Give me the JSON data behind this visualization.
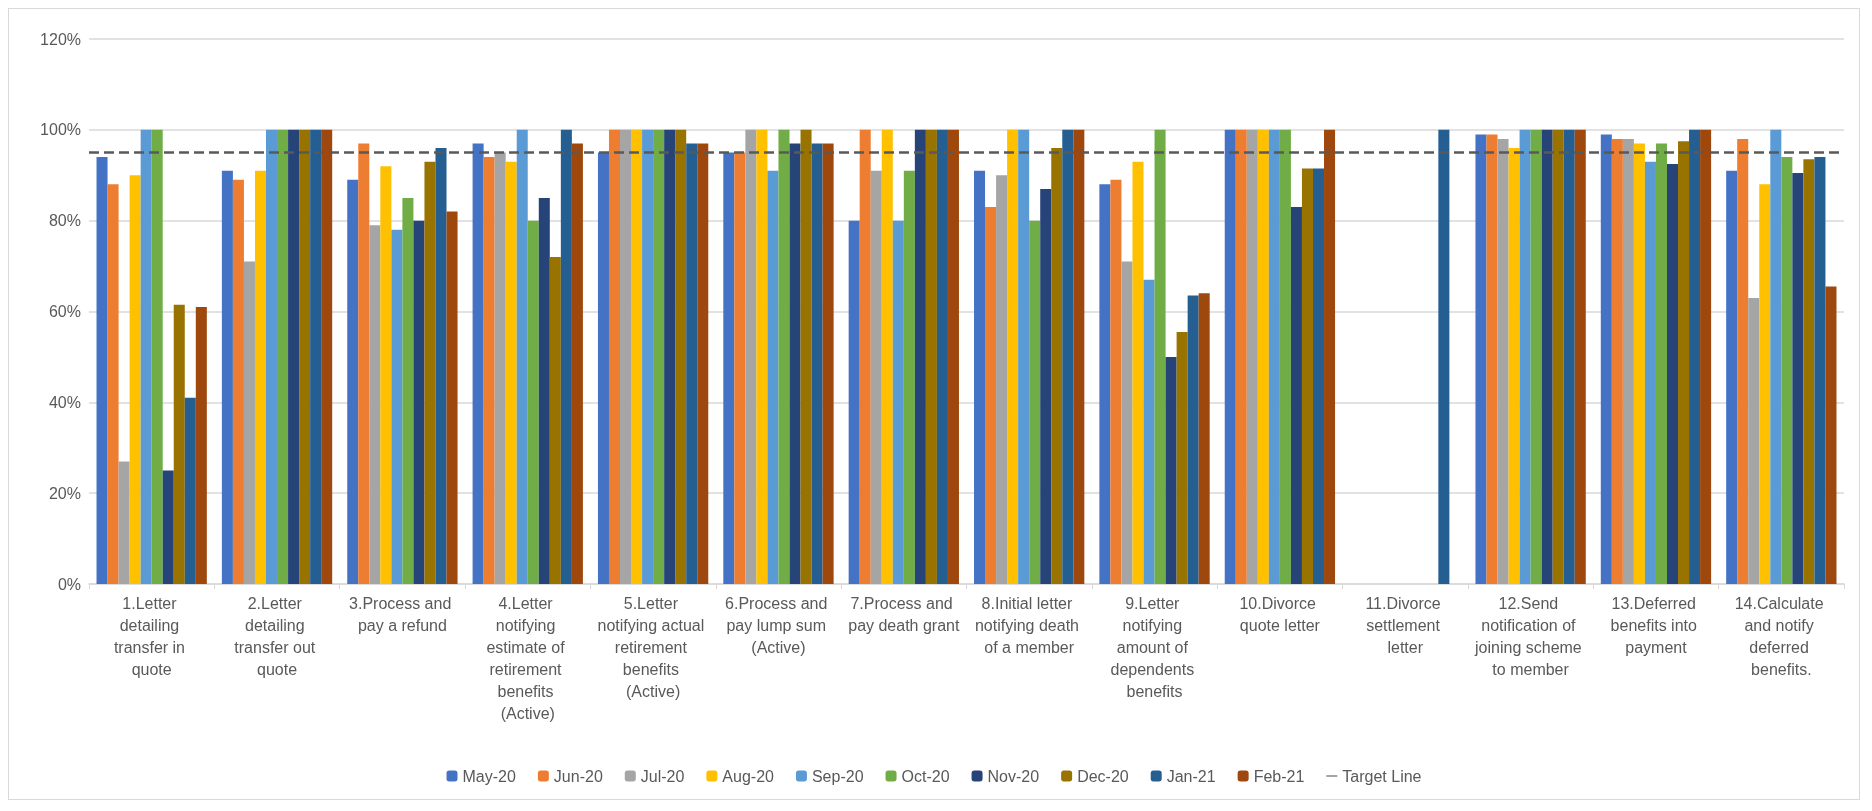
{
  "chart_data": {
    "type": "bar",
    "categories": [
      "1.Letter detailing transfer in quote",
      "2.Letter detailing transfer out quote",
      "3.Process and pay a refund",
      "4.Letter notifying estimate of retirement benefits (Active)",
      "5.Letter notifying actual retirement benefits (Active)",
      "6.Process and pay lump sum (Active)",
      "7.Process and pay death grant",
      "8.Initial letter notifying death of a member",
      "9.Letter notifying amount of dependents benefits",
      "10.Divorce quote letter",
      "11.Divorce settlement letter",
      "12.Send notification of joining scheme to member",
      "13.Deferred benefits into payment",
      "14.Calculate and notify deferred benefits."
    ],
    "series": [
      {
        "name": "May-20",
        "color": "#4472c4",
        "values": [
          94,
          91,
          89,
          97,
          95,
          95,
          80,
          91,
          88,
          100,
          null,
          99,
          99,
          91
        ]
      },
      {
        "name": "Jun-20",
        "color": "#ed7d31",
        "values": [
          88,
          89,
          97,
          94,
          100,
          95,
          100,
          83,
          89,
          100,
          null,
          99,
          98,
          98
        ]
      },
      {
        "name": "Jul-20",
        "color": "#a5a5a5",
        "values": [
          27,
          71,
          79,
          95,
          100,
          100,
          91,
          90,
          71,
          100,
          null,
          98,
          98,
          63
        ]
      },
      {
        "name": "Aug-20",
        "color": "#ffc000",
        "values": [
          90,
          91,
          92,
          93,
          100,
          100,
          100,
          100,
          93,
          100,
          null,
          96,
          97,
          88
        ]
      },
      {
        "name": "Sep-20",
        "color": "#5b9bd5",
        "values": [
          100,
          100,
          78,
          100,
          100,
          91,
          80,
          100,
          67,
          100,
          null,
          100,
          93,
          100
        ]
      },
      {
        "name": "Oct-20",
        "color": "#70ad47",
        "values": [
          100,
          100,
          85,
          80,
          100,
          100,
          91,
          80,
          100,
          100,
          null,
          100,
          97,
          94
        ]
      },
      {
        "name": "Nov-20",
        "color": "#264478",
        "values": [
          25,
          100,
          80,
          85,
          100,
          97,
          100,
          87,
          50,
          83,
          null,
          100,
          92.5,
          90.5
        ]
      },
      {
        "name": "Dec-20",
        "color": "#997300",
        "values": [
          61.5,
          100,
          93,
          72,
          100,
          100,
          100,
          96,
          55.5,
          91.5,
          null,
          100,
          97.5,
          93.5
        ]
      },
      {
        "name": "Jan-21",
        "color": "#255e91",
        "values": [
          41,
          100,
          96,
          100,
          97,
          97,
          100,
          100,
          63.5,
          91.5,
          100,
          100,
          100,
          94
        ]
      },
      {
        "name": "Feb-21",
        "color": "#9e480e",
        "values": [
          61,
          100,
          82,
          97,
          97,
          97,
          100,
          100,
          64,
          100,
          null,
          100,
          100,
          65.5
        ]
      }
    ],
    "ylim": [
      0,
      120
    ],
    "yticks": [
      {
        "value": 0,
        "label": "0%"
      },
      {
        "value": 20,
        "label": "20%"
      },
      {
        "value": 40,
        "label": "40%"
      },
      {
        "value": 60,
        "label": "60%"
      },
      {
        "value": 80,
        "label": "80%"
      },
      {
        "value": 100,
        "label": "100%"
      },
      {
        "value": 120,
        "label": "120%"
      }
    ],
    "ref_lines": [
      {
        "axis": "y",
        "value": 95,
        "label": "Target Line",
        "color": "#595959",
        "line_style": "dashed"
      }
    ],
    "grid": "y",
    "legend": "bottom"
  }
}
